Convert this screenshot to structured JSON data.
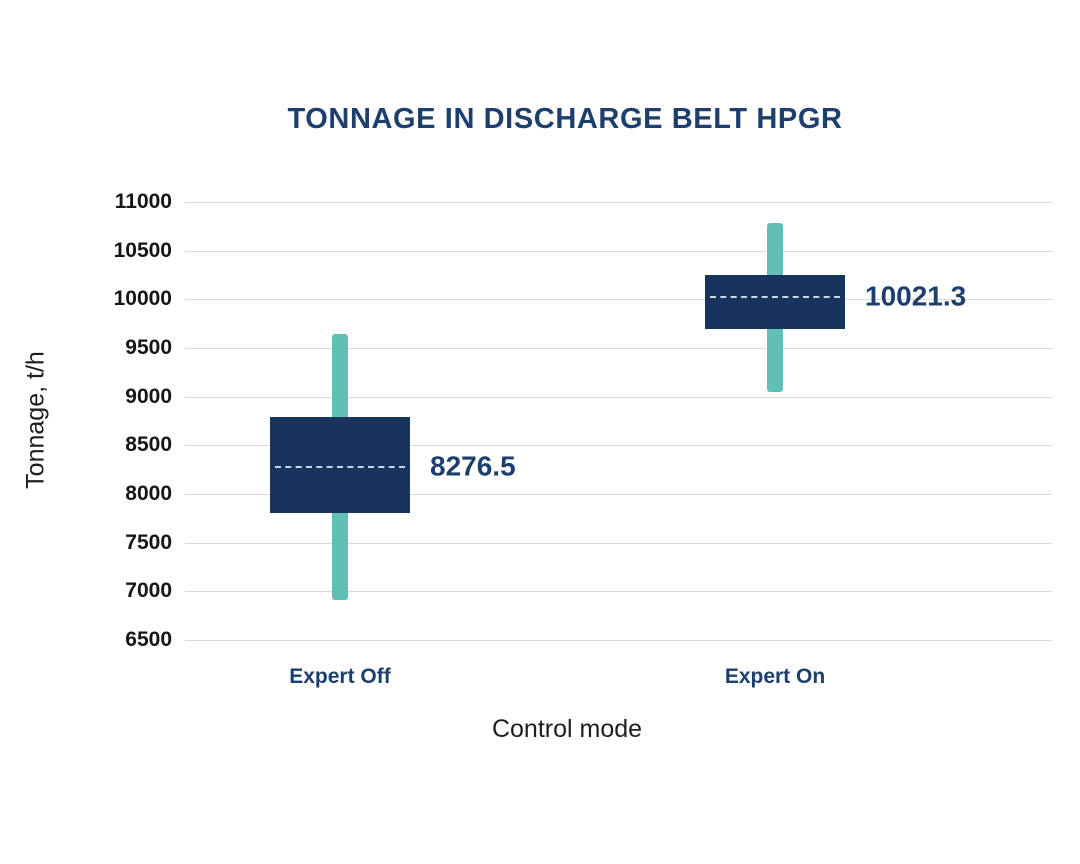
{
  "chart_data": {
    "type": "boxplot",
    "title": "TONNAGE IN DISCHARGE BELT HPGR",
    "xlabel": "Control mode",
    "ylabel": "Tonnage, t/h",
    "ylim": [
      6500,
      11000
    ],
    "yticks": [
      11000,
      10500,
      10000,
      9500,
      9000,
      8500,
      8000,
      7500,
      7000,
      6500
    ],
    "grid": "horizontal-gridlines",
    "legend": "none",
    "categories": [
      "Expert Off",
      "Expert On"
    ],
    "series": [
      {
        "category": "Expert Off",
        "whisker_low": 6910,
        "whisker_high": 9640,
        "box_low": 7800,
        "box_high": 8790,
        "mean": 8276.5,
        "mean_label": "8276.5"
      },
      {
        "category": "Expert On",
        "whisker_low": 9050,
        "whisker_high": 10780,
        "box_low": 9700,
        "box_high": 10250,
        "mean": 10021.3,
        "mean_label": "10021.3"
      }
    ],
    "colors": {
      "box": "#17335e",
      "whisker": "#62bfb4",
      "mean_line": "#ccd6e2",
      "gridline": "#d8d8d8",
      "title_text": "#1c3f6e",
      "category_text": "#1c3f6e",
      "value_text": "#1c3f6e",
      "tick_text": "#161616",
      "axis_label_text": "#1d1d1d"
    }
  }
}
